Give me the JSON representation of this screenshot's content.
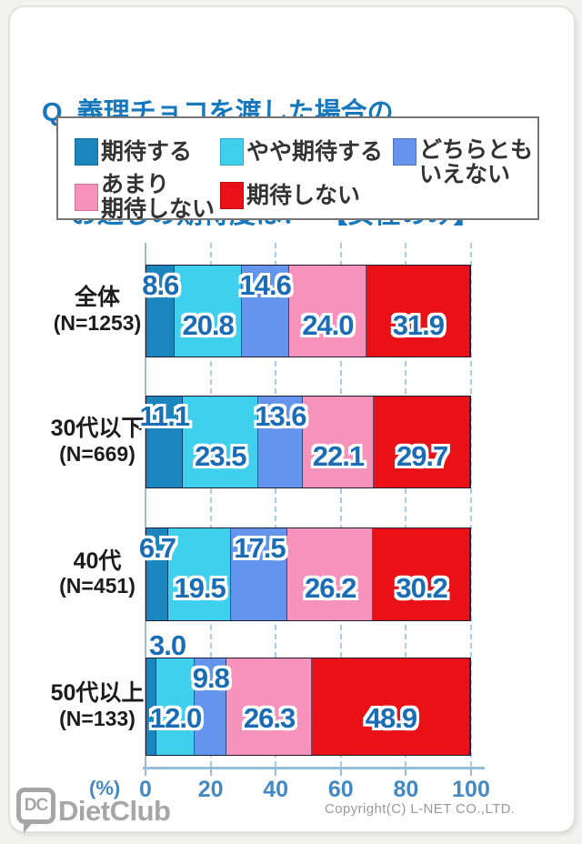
{
  "page": {
    "title_line1": "Q. 義理チョコを渡した場合の",
    "title_line2": "お返しの期待度は？　【女性のみ】"
  },
  "legend": {
    "items": [
      {
        "label": "期待する",
        "label2": "",
        "color": "#1a86bd"
      },
      {
        "label": "やや期待する",
        "label2": "",
        "color": "#3fd0ee"
      },
      {
        "label": "どちらとも",
        "label2": "いえない",
        "color": "#6494ec"
      },
      {
        "label": "あまり",
        "label2": "期待しない",
        "color": "#f793bb"
      },
      {
        "label": "期待しない",
        "label2": "",
        "color": "#ea1017"
      }
    ]
  },
  "chart_data": {
    "type": "bar",
    "stacked": true,
    "orientation": "horizontal",
    "title": "義理チョコを渡した場合のお返しの期待度（女性のみ）",
    "categories": [
      {
        "name": "全体",
        "n": "(N=1253)"
      },
      {
        "name": "30代以下",
        "n": "(N=669)"
      },
      {
        "name": "40代",
        "n": "(N=451)"
      },
      {
        "name": "50代以上",
        "n": "(N=133)"
      }
    ],
    "series": [
      {
        "name": "期待する",
        "color": "#1a86bd",
        "values": [
          8.6,
          11.1,
          6.7,
          3.0
        ]
      },
      {
        "name": "やや期待する",
        "color": "#3fd0ee",
        "values": [
          20.8,
          23.5,
          19.5,
          12.0
        ]
      },
      {
        "name": "どちらともいえない",
        "color": "#6494ec",
        "values": [
          14.6,
          13.6,
          17.5,
          9.8
        ]
      },
      {
        "name": "あまり期待しない",
        "color": "#f793bb",
        "values": [
          24.0,
          22.1,
          26.2,
          26.3
        ]
      },
      {
        "name": "期待しない",
        "color": "#ea1017",
        "values": [
          31.9,
          29.7,
          30.2,
          48.9
        ]
      }
    ],
    "x_ticks": [
      0,
      20,
      40,
      60,
      80,
      100
    ],
    "xlim": [
      0,
      100
    ],
    "x_unit": "(%)",
    "grid": "dashed-vertical",
    "legend_position": "top",
    "value_label_color": "#1a6cb4"
  },
  "footer": {
    "copyright": "Copyright(C) L-NET CO.,LTD.",
    "logo_badge": "DC",
    "logo_text": "DietClub"
  }
}
